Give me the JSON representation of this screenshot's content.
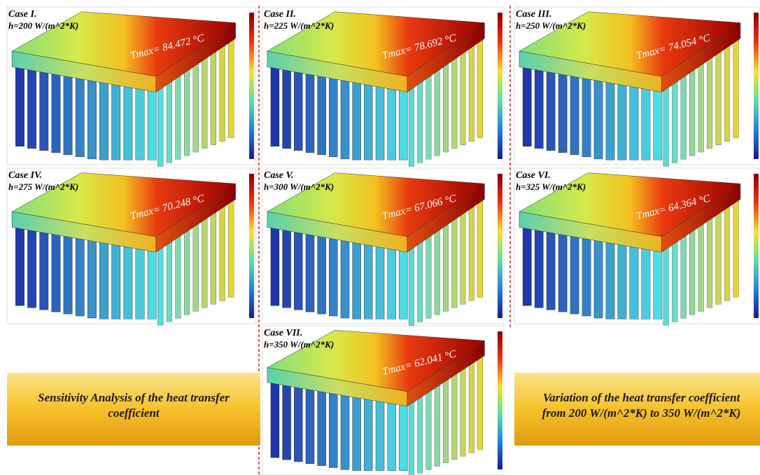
{
  "panels": [
    {
      "case": "Case I.",
      "h": "h=200 W/(m^2*K)",
      "tmax": "Tmax= 84.472 °C"
    },
    {
      "case": "Case II.",
      "h": "h=225 W/(m^2*K)",
      "tmax": "Tmax= 78.692 °C"
    },
    {
      "case": "Case III.",
      "h": "h=250 W/(m^2*K)",
      "tmax": "Tmax= 74.054 °C"
    },
    {
      "case": "Case IV.",
      "h": "h=275 W/(m^2*K)",
      "tmax": "Tmax= 70.248 °C"
    },
    {
      "case": "Case V.",
      "h": "h=300 W/(m^2*K)",
      "tmax": "Tmax= 67.066 °C"
    },
    {
      "case": "Case VI.",
      "h": "h=325 W/(m^2*K)",
      "tmax": "Tmax= 64.364 °C"
    },
    {
      "case": "Case VII.",
      "h": "h=350 W/(m^2*K)",
      "tmax": "Tmax= 62.041 °C"
    }
  ],
  "banners": [
    {
      "lines": [
        "Sensitivity Analysis of the heat transfer",
        "coefficient"
      ]
    },
    {
      "lines": [
        "Variation of the heat transfer coefficient",
        "from 200 W/(m^2*K) to 350 W/(m^2*K)"
      ]
    }
  ]
}
